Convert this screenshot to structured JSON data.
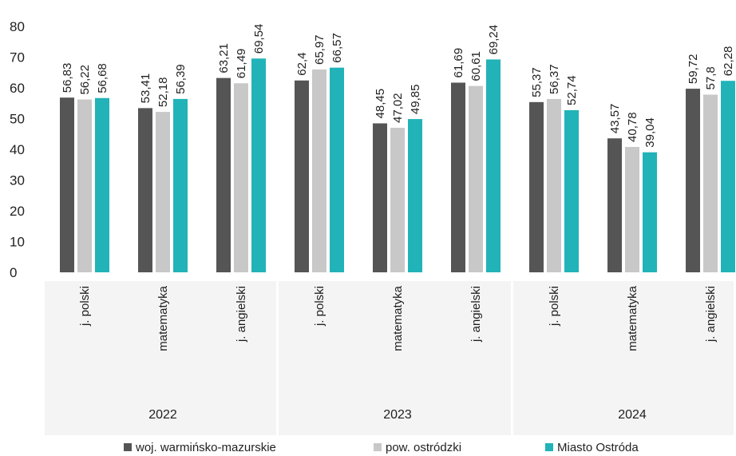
{
  "chart_data": {
    "type": "bar",
    "title": "",
    "xlabel": "",
    "ylabel": "",
    "ylim": [
      0,
      80
    ],
    "yticks": [
      "0",
      "10",
      "20",
      "30",
      "40",
      "50",
      "60",
      "70",
      "80"
    ],
    "grid": false,
    "legend_position": "bottom",
    "categories": [
      "j. polski",
      "matematyka",
      "j. angielski",
      "j. polski",
      "matematyka",
      "j. angielski",
      "j. polski",
      "matematyka",
      "j. angielski"
    ],
    "groups": [
      {
        "label": "2022",
        "categories": [
          0,
          1,
          2
        ]
      },
      {
        "label": "2023",
        "categories": [
          3,
          4,
          5
        ]
      },
      {
        "label": "2024",
        "categories": [
          6,
          7,
          8
        ]
      }
    ],
    "series": [
      {
        "name": "woj. warmińsko-mazurskie",
        "color": "#555555",
        "values": [
          56.83,
          53.41,
          63.21,
          62.4,
          48.45,
          61.69,
          55.37,
          43.57,
          59.72
        ],
        "labels": [
          "56,83",
          "53,41",
          "63,21",
          "62,4",
          "48,45",
          "61,69",
          "55,37",
          "43,57",
          "59,72"
        ]
      },
      {
        "name": "pow. ostródzki",
        "color": "#c8c8c8",
        "values": [
          56.22,
          52.18,
          61.49,
          65.97,
          47.02,
          60.61,
          56.37,
          40.78,
          57.8
        ],
        "labels": [
          "56,22",
          "52,18",
          "61,49",
          "65,97",
          "47,02",
          "60,61",
          "56,37",
          "40,78",
          "57,8"
        ]
      },
      {
        "name": "Miasto Ostróda",
        "color": "#21b3b8",
        "values": [
          56.68,
          56.39,
          69.54,
          66.57,
          49.85,
          69.24,
          52.74,
          39.04,
          62.28
        ],
        "labels": [
          "56,68",
          "56,39",
          "69,54",
          "66,57",
          "49,85",
          "69,24",
          "52,74",
          "39,04",
          "62,28"
        ]
      }
    ]
  }
}
